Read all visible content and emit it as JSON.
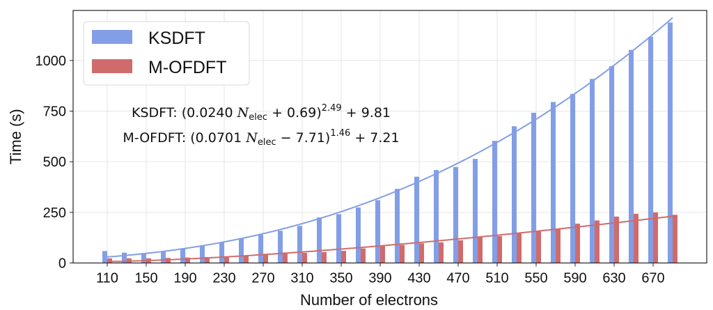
{
  "chart_data": {
    "type": "bar",
    "xlabel": "Number of electrons",
    "ylabel": "Time (s)",
    "categories": [
      110,
      130,
      150,
      170,
      190,
      210,
      230,
      250,
      270,
      290,
      310,
      330,
      350,
      370,
      390,
      410,
      430,
      450,
      470,
      490,
      510,
      530,
      550,
      570,
      590,
      610,
      630,
      650,
      670,
      690
    ],
    "x_tick_labels": [
      "110",
      "150",
      "190",
      "230",
      "270",
      "310",
      "350",
      "390",
      "430",
      "470",
      "510",
      "550",
      "590",
      "630",
      "670"
    ],
    "y_tick_labels": [
      "0",
      "250",
      "500",
      "750",
      "1000"
    ],
    "y_ticks": [
      0,
      250,
      500,
      750,
      1000
    ],
    "xlim": [
      75,
      725
    ],
    "ylim": [
      0,
      1247
    ],
    "grid": true,
    "legend_position": "top-left",
    "series": [
      {
        "name": "KSDFT",
        "color": "#829ee6",
        "values": [
          59,
          51,
          49,
          58,
          72,
          87,
          103,
          121,
          139,
          159,
          183,
          225,
          241,
          274,
          310,
          366,
          426,
          459,
          474,
          514,
          603,
          675,
          742,
          795,
          835,
          909,
          972,
          1052,
          1117,
          1187
        ]
      },
      {
        "name": "M-OFDFT",
        "color": "#d06b6b",
        "values": [
          23,
          23,
          23,
          25,
          27,
          29,
          33,
          37,
          43,
          46,
          50,
          54,
          60,
          72,
          86,
          89,
          97,
          102,
          112,
          129,
          133,
          150,
          160,
          170,
          194,
          210,
          229,
          243,
          250,
          238
        ]
      }
    ],
    "fits": [
      {
        "series": "KSDFT",
        "a": 0.024,
        "b": 0.69,
        "p": 2.49,
        "c": 9.81,
        "color": "#829ee6"
      },
      {
        "series": "M-OFDFT",
        "a": 0.0701,
        "b": -7.71,
        "p": 1.46,
        "c": 7.21,
        "color": "#d06b6b"
      }
    ],
    "annotations": [
      {
        "prefix": "KSDFT: (0.0240",
        "var": "N",
        "sub": "elec",
        "mid": " + 0.69)",
        "exp": "2.49",
        "suffix": " + 9.81"
      },
      {
        "prefix": "M-OFDFT: (0.0701",
        "var": "N",
        "sub": "elec",
        "mid": " − 7.71)",
        "exp": "1.46",
        "suffix": " + 7.21"
      }
    ]
  }
}
